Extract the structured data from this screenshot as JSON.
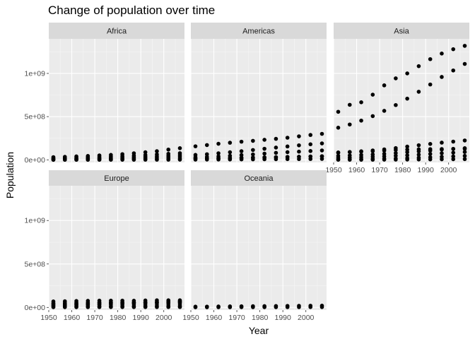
{
  "chart_data": {
    "type": "scatter",
    "title": "Change of population over time",
    "xlabel": "Year",
    "ylabel": "Population",
    "xlim": [
      1950,
      2009
    ],
    "ylim": [
      -30000000,
      1400000000
    ],
    "x_ticks": [
      1950,
      1960,
      1970,
      1980,
      1990,
      2000
    ],
    "x_tick_labels": [
      "1950",
      "1960",
      "1970",
      "1980",
      "1990",
      "2000"
    ],
    "y_ticks": [
      0,
      500000000,
      1000000000
    ],
    "y_tick_labels": [
      "0e+00",
      "5e+08",
      "1e+09"
    ],
    "grid": true,
    "legend": "none",
    "point_color": "#000000",
    "panel_background": "#EBEBEB",
    "strip_background": "#D9D9D9",
    "years": [
      1952,
      1957,
      1962,
      1967,
      1972,
      1977,
      1982,
      1987,
      1992,
      1997,
      2002,
      2007
    ],
    "facets": [
      {
        "name": "Africa",
        "series": [
          [
            21000000,
            24000000,
            27000000,
            30000000,
            34000000,
            38000000,
            43000000,
            50000000,
            56000000,
            63000000,
            70000000,
            77000000
          ],
          [
            31000000,
            35000000,
            40000000,
            45000000,
            51000000,
            57000000,
            66000000,
            76000000,
            88000000,
            100000000,
            119000000,
            135000000
          ],
          [
            12000000,
            14000000,
            16000000,
            18000000,
            21000000,
            24000000,
            28000000,
            32000000,
            37000000,
            42000000,
            48000000,
            55000000
          ],
          [
            8000000,
            9000000,
            10000000,
            11000000,
            13000000,
            15000000,
            17000000,
            20000000,
            23000000,
            26000000,
            30000000,
            34000000
          ],
          [
            3000000,
            3400000,
            3900000,
            4400000,
            5000000,
            5700000,
            6500000,
            7500000,
            8600000,
            9800000,
            11000000,
            12500000
          ],
          [
            500000,
            600000,
            700000,
            800000,
            900000,
            1000000,
            1200000,
            1400000,
            1600000,
            1800000,
            2000000,
            2300000
          ]
        ]
      },
      {
        "name": "Americas",
        "series": [
          [
            157000000,
            171000000,
            186000000,
            198000000,
            210000000,
            220000000,
            232000000,
            243000000,
            256000000,
            272000000,
            288000000,
            301000000
          ],
          [
            57000000,
            65000000,
            76000000,
            88000000,
            100000000,
            114000000,
            128000000,
            142000000,
            155000000,
            168000000,
            180000000,
            190000000
          ],
          [
            30000000,
            35000000,
            41000000,
            47000000,
            55000000,
            63000000,
            72000000,
            81000000,
            89000000,
            95000000,
            102000000,
            109000000
          ],
          [
            18000000,
            19500000,
            21000000,
            23000000,
            25000000,
            27000000,
            29000000,
            31000000,
            34000000,
            36000000,
            38000000,
            40000000
          ],
          [
            12000000,
            14000000,
            16000000,
            18000000,
            21000000,
            24000000,
            27000000,
            30000000,
            33000000,
            36000000,
            39000000,
            42000000
          ],
          [
            3000000,
            3500000,
            4000000,
            4600000,
            5200000,
            5900000,
            6700000,
            7500000,
            8300000,
            9100000,
            10000000,
            11000000
          ]
        ]
      },
      {
        "name": "Asia",
        "series": [
          [
            556000000,
            637000000,
            666000000,
            754000000,
            862000000,
            943000000,
            1000000000,
            1084000000,
            1165000000,
            1230000000,
            1280000000,
            1319000000
          ],
          [
            372000000,
            409000000,
            454000000,
            506000000,
            567000000,
            634000000,
            708000000,
            788000000,
            872000000,
            959000000,
            1034000000,
            1110000000
          ],
          [
            82000000,
            90000000,
            99000000,
            109000000,
            121000000,
            136000000,
            153000000,
            169000000,
            184000000,
            199000000,
            211000000,
            224000000
          ],
          [
            86000000,
            91000000,
            95000000,
            100000000,
            107000000,
            114000000,
            118000000,
            122000000,
            124000000,
            125000000,
            127000000,
            127000000
          ],
          [
            46000000,
            51000000,
            57000000,
            62000000,
            69000000,
            78000000,
            89000000,
            98000000,
            107000000,
            118000000,
            126000000,
            135000000
          ],
          [
            22000000,
            26000000,
            30000000,
            35000000,
            40000000,
            47000000,
            53000000,
            60000000,
            68000000,
            76000000,
            83000000,
            91000000
          ],
          [
            5000000,
            6000000,
            8000000,
            10000000,
            13000000,
            16000000,
            20000000,
            25000000,
            30000000,
            35000000,
            40000000,
            46000000
          ],
          [
            1000000,
            1200000,
            1500000,
            1800000,
            2300000,
            2900000,
            3600000,
            4500000,
            5500000,
            6500000,
            7500000,
            8500000
          ]
        ]
      },
      {
        "name": "Europe",
        "series": [
          [
            69000000,
            71000000,
            74000000,
            76000000,
            78000000,
            78000000,
            78000000,
            77000000,
            80000000,
            82000000,
            82000000,
            82000000
          ],
          [
            50000000,
            51000000,
            52000000,
            54000000,
            56000000,
            57000000,
            57000000,
            57000000,
            58000000,
            58000000,
            59000000,
            60000000
          ],
          [
            42000000,
            44000000,
            47000000,
            50000000,
            53000000,
            55000000,
            55000000,
            56000000,
            57000000,
            57000000,
            58000000,
            59000000
          ],
          [
            28000000,
            30000000,
            33000000,
            36000000,
            40000000,
            44000000,
            47000000,
            52000000,
            58000000,
            63000000,
            68000000,
            71000000
          ],
          [
            25000000,
            26000000,
            28000000,
            30000000,
            32000000,
            35000000,
            37000000,
            38000000,
            39000000,
            39000000,
            40000000,
            40000000
          ],
          [
            10000000,
            11000000,
            12000000,
            13000000,
            14000000,
            15000000,
            15500000,
            16000000,
            16500000,
            16800000,
            17000000,
            17200000
          ],
          [
            3000000,
            3200000,
            3400000,
            3600000,
            3800000,
            4000000,
            4100000,
            4200000,
            4300000,
            4400000,
            4500000,
            4600000
          ]
        ]
      },
      {
        "name": "Oceania",
        "series": [
          [
            8700000,
            9700000,
            10800000,
            11900000,
            13200000,
            14100000,
            15200000,
            16300000,
            17500000,
            18600000,
            19500000,
            20400000
          ],
          [
            1990000,
            2140000,
            2490000,
            2730000,
            2930000,
            3160000,
            3210000,
            3320000,
            3440000,
            3680000,
            3910000,
            4120000
          ]
        ]
      }
    ]
  }
}
